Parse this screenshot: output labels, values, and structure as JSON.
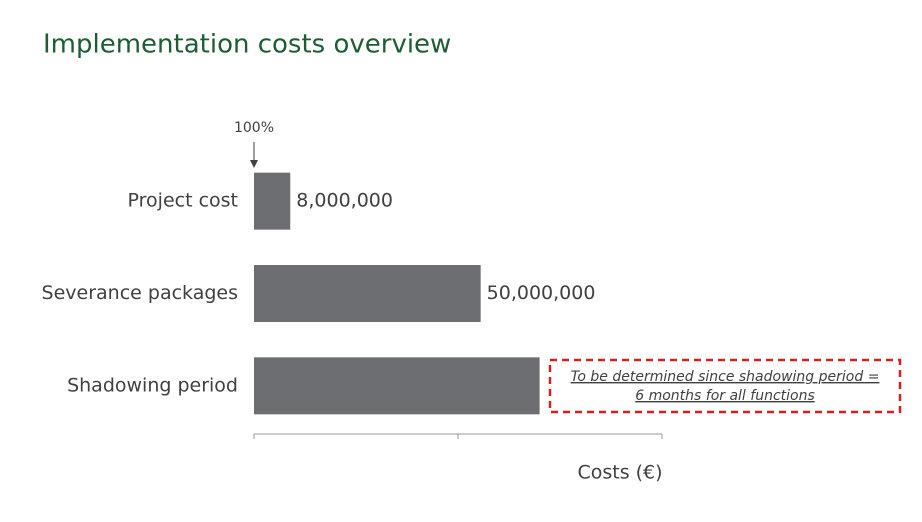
{
  "chart_data": {
    "type": "bar",
    "orientation": "horizontal",
    "title": "Implementation costs overview",
    "categories": [
      "Project cost",
      "Severance packages",
      "Shadowing period"
    ],
    "values": [
      8000000,
      50000000,
      63000000
    ],
    "value_labels": [
      "8,000,000",
      "50,000,000",
      null
    ],
    "color": "#6d6e71",
    "xlim": [
      0,
      90000000
    ],
    "xticks": [
      0,
      45000000,
      90000000
    ],
    "x_label": "Costs (€)",
    "start_annotation": "100%",
    "note_lines": [
      "To be determined since shadowing period =",
      "6 months for all functions"
    ]
  }
}
